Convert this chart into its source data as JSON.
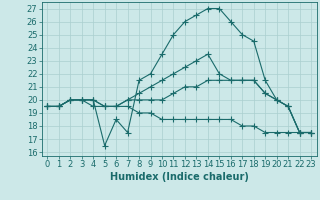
{
  "xlabel": "Humidex (Indice chaleur)",
  "background_color": "#cce8e8",
  "grid_color": "#aacfcf",
  "line_color": "#1a6b6b",
  "xlim": [
    -0.5,
    23.5
  ],
  "ylim": [
    15.7,
    27.5
  ],
  "yticks": [
    16,
    17,
    18,
    19,
    20,
    21,
    22,
    23,
    24,
    25,
    26,
    27
  ],
  "xticks": [
    0,
    1,
    2,
    3,
    4,
    5,
    6,
    7,
    8,
    9,
    10,
    11,
    12,
    13,
    14,
    15,
    16,
    17,
    18,
    19,
    20,
    21,
    22,
    23
  ],
  "lines": [
    {
      "x": [
        0,
        1,
        2,
        3,
        4,
        5,
        6,
        7,
        8,
        9,
        10,
        11,
        12,
        13,
        14,
        15,
        16,
        17,
        18,
        19,
        20,
        21,
        22,
        23
      ],
      "y": [
        19.5,
        19.5,
        20.0,
        20.0,
        20.0,
        16.5,
        18.5,
        17.5,
        21.5,
        22.0,
        23.5,
        25.0,
        26.0,
        26.5,
        27.0,
        27.0,
        26.0,
        25.0,
        24.5,
        21.5,
        20.0,
        19.5,
        17.5,
        17.5
      ]
    },
    {
      "x": [
        0,
        1,
        2,
        3,
        4,
        5,
        6,
        7,
        8,
        9,
        10,
        11,
        12,
        13,
        14,
        15,
        16,
        17,
        18,
        19,
        20,
        21,
        22,
        23
      ],
      "y": [
        19.5,
        19.5,
        20.0,
        20.0,
        20.0,
        19.5,
        19.5,
        20.0,
        20.5,
        21.0,
        21.5,
        22.0,
        22.5,
        23.0,
        23.5,
        22.0,
        21.5,
        21.5,
        21.5,
        20.5,
        20.0,
        19.5,
        17.5,
        17.5
      ]
    },
    {
      "x": [
        0,
        1,
        2,
        3,
        4,
        5,
        6,
        7,
        8,
        9,
        10,
        11,
        12,
        13,
        14,
        15,
        16,
        17,
        18,
        19,
        20,
        21,
        22,
        23
      ],
      "y": [
        19.5,
        19.5,
        20.0,
        20.0,
        20.0,
        19.5,
        19.5,
        20.0,
        20.0,
        20.0,
        20.0,
        20.5,
        21.0,
        21.0,
        21.5,
        21.5,
        21.5,
        21.5,
        21.5,
        20.5,
        20.0,
        19.5,
        17.5,
        17.5
      ]
    },
    {
      "x": [
        0,
        1,
        2,
        3,
        4,
        5,
        6,
        7,
        8,
        9,
        10,
        11,
        12,
        13,
        14,
        15,
        16,
        17,
        18,
        19,
        20,
        21,
        22,
        23
      ],
      "y": [
        19.5,
        19.5,
        20.0,
        20.0,
        19.5,
        19.5,
        19.5,
        19.5,
        19.0,
        19.0,
        18.5,
        18.5,
        18.5,
        18.5,
        18.5,
        18.5,
        18.5,
        18.0,
        18.0,
        17.5,
        17.5,
        17.5,
        17.5,
        17.5
      ]
    }
  ],
  "marker": "+",
  "marker_size": 4,
  "line_width": 0.8,
  "font_size": 6,
  "xlabel_fontsize": 7
}
